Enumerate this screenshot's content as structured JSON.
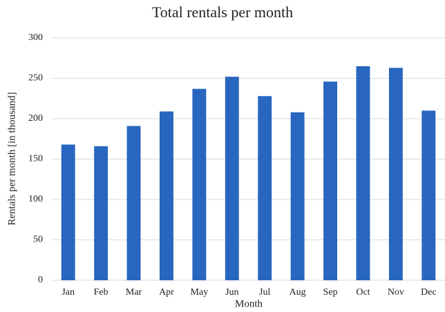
{
  "chart_data": {
    "type": "bar",
    "title": "Total rentals per month",
    "x_label": "Month",
    "y_label": "Rentals per month [in thousand]",
    "categories": [
      "Jan",
      "Feb",
      "Mar",
      "Apr",
      "May",
      "Jun",
      "Jul",
      "Aug",
      "Sep",
      "Oct",
      "Nov",
      "Dec"
    ],
    "values": [
      168,
      166,
      191,
      209,
      237,
      252,
      228,
      208,
      246,
      265,
      263,
      210
    ],
    "color": "#2866c0",
    "ylim": [
      0,
      300
    ],
    "yticks": [
      0,
      50,
      100,
      150,
      200,
      250,
      300
    ],
    "grid": true
  }
}
